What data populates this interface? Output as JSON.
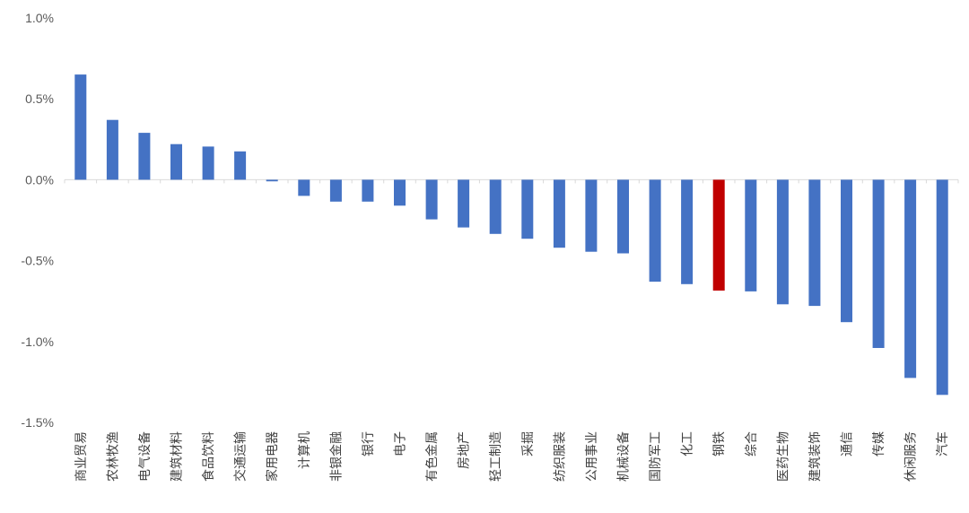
{
  "chart_data": {
    "type": "bar",
    "title": "",
    "xlabel": "",
    "ylabel": "",
    "ylim": [
      -1.5,
      1.0
    ],
    "yticks": [
      1.0,
      0.5,
      0.0,
      -0.5,
      -1.0,
      -1.5
    ],
    "ytick_labels": [
      "1.0%",
      "0.5%",
      "0.0%",
      "-0.5%",
      "-1.0%",
      "-1.5%"
    ],
    "grid": false,
    "legend": "none",
    "bar_color": "#4472C4",
    "highlight_color": "#C00000",
    "highlight_category": "钢铁",
    "categories": [
      "商业贸易",
      "农林牧渔",
      "电气设备",
      "建筑材料",
      "食品饮料",
      "交通运输",
      "家用电器",
      "计算机",
      "非银金融",
      "银行",
      "电子",
      "有色金属",
      "房地产",
      "轻工制造",
      "采掘",
      "纺织服装",
      "公用事业",
      "机械设备",
      "国防军工",
      "化工",
      "钢铁",
      "综合",
      "医药生物",
      "建筑装饰",
      "通信",
      "传媒",
      "休闲服务",
      "汽车"
    ],
    "values": [
      0.65,
      0.37,
      0.29,
      0.22,
      0.205,
      0.175,
      -0.01,
      -0.1,
      -0.135,
      -0.135,
      -0.16,
      -0.245,
      -0.295,
      -0.335,
      -0.365,
      -0.42,
      -0.445,
      -0.455,
      -0.63,
      -0.645,
      -0.685,
      -0.69,
      -0.77,
      -0.78,
      -0.88,
      -1.04,
      -1.225,
      -1.33
    ]
  }
}
